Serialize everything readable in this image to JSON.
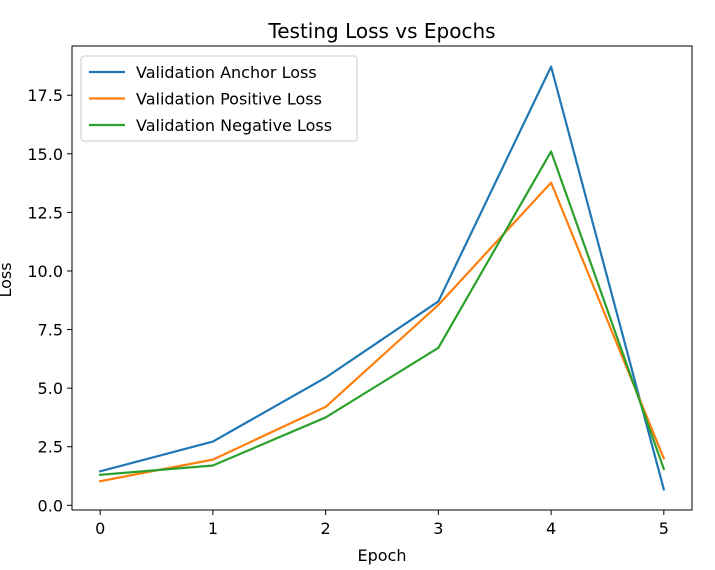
{
  "chart_data": {
    "type": "line",
    "title": "Testing Loss vs Epochs",
    "xlabel": "Epoch",
    "ylabel": "Loss",
    "x": [
      0,
      1,
      2,
      3,
      4,
      5
    ],
    "xlim": [
      -0.25,
      5.25
    ],
    "ylim": [
      -0.2,
      19.6
    ],
    "xticks": [
      0,
      1,
      2,
      3,
      4,
      5
    ],
    "xtick_labels": [
      "0",
      "1",
      "2",
      "3",
      "4",
      "5"
    ],
    "yticks": [
      0,
      2.5,
      5,
      7.5,
      10,
      12.5,
      15,
      17.5
    ],
    "ytick_labels": [
      "0.0",
      "2.5",
      "5.0",
      "7.5",
      "10.0",
      "12.5",
      "15.0",
      "17.5"
    ],
    "grid": false,
    "legend_position": "top-left",
    "series": [
      {
        "name": "Validation Anchor Loss",
        "color": "#1f77b4",
        "values": [
          1.45,
          2.72,
          5.45,
          8.7,
          18.72,
          0.68
        ]
      },
      {
        "name": "Validation Positive Loss",
        "color": "#ff7f0e",
        "values": [
          1.03,
          1.95,
          4.2,
          8.55,
          13.77,
          2.0
        ]
      },
      {
        "name": "Validation Negative Loss",
        "color": "#2ca02c",
        "values": [
          1.3,
          1.7,
          3.75,
          6.72,
          15.1,
          1.55
        ]
      }
    ]
  }
}
